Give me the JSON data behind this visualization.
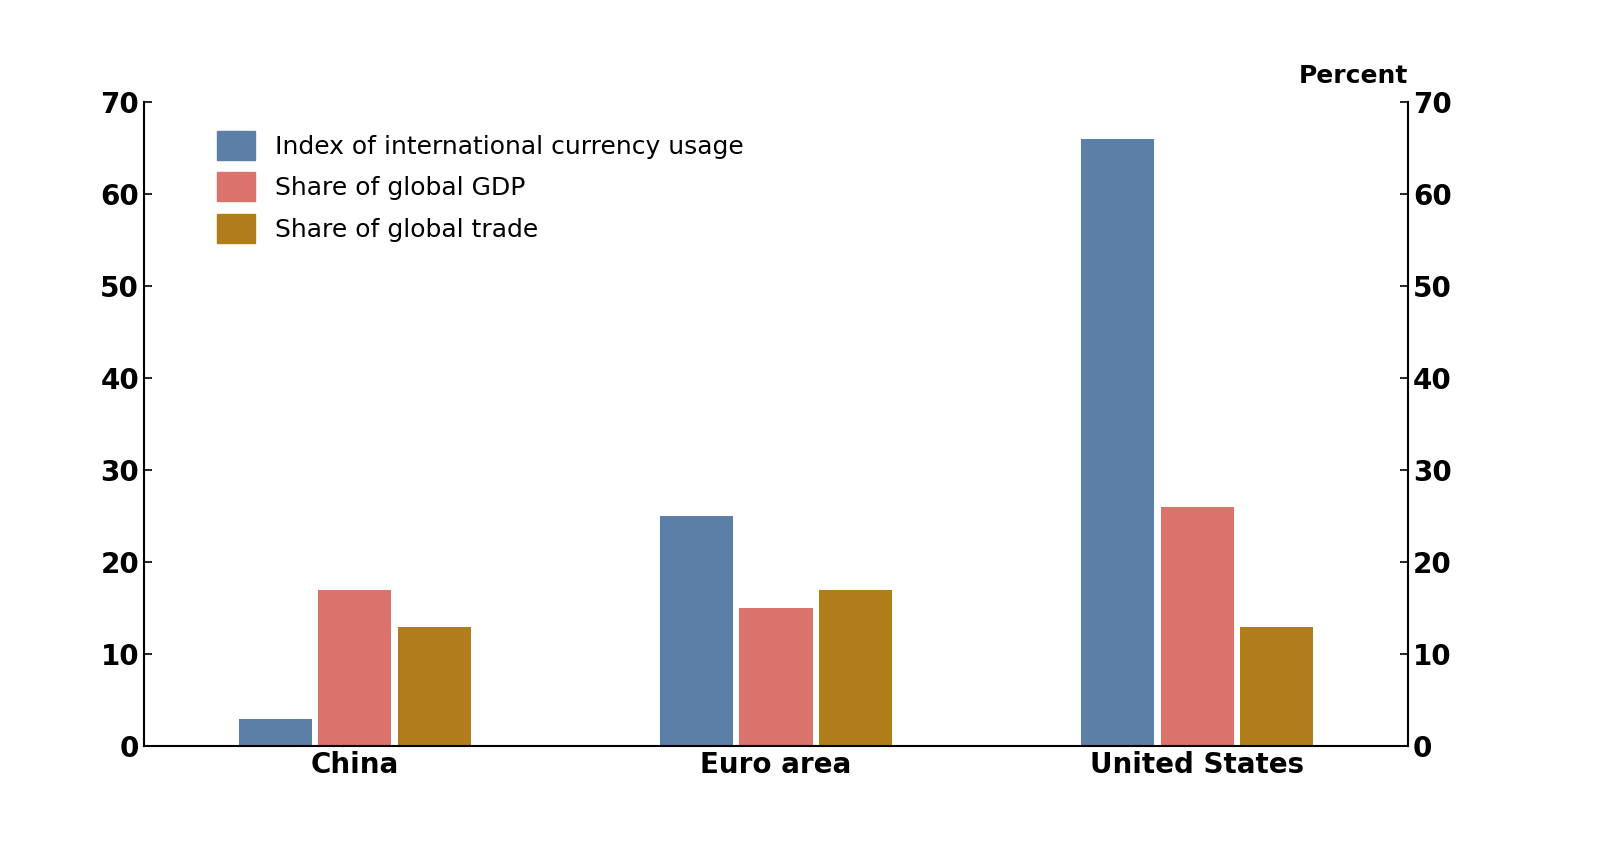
{
  "categories": [
    "China",
    "Euro area",
    "United States"
  ],
  "series": {
    "Index of international currency usage": [
      3,
      25,
      66
    ],
    "Share of global GDP": [
      17,
      15,
      26
    ],
    "Share of global trade": [
      13,
      17,
      13
    ]
  },
  "colors": {
    "Index of international currency usage": "#5b7fa6",
    "Share of global GDP": "#d9736b",
    "Share of global trade": "#b07d1a"
  },
  "ylim": [
    0,
    70
  ],
  "yticks": [
    0,
    10,
    20,
    30,
    40,
    50,
    60,
    70
  ],
  "ylabel_right": "Percent",
  "background_color": "#ffffff",
  "legend_fontsize": 18,
  "tick_fontsize": 20,
  "xtick_fontsize": 20,
  "ylabel_fontsize": 18,
  "group_width": 0.55,
  "bar_gap": 0.015
}
